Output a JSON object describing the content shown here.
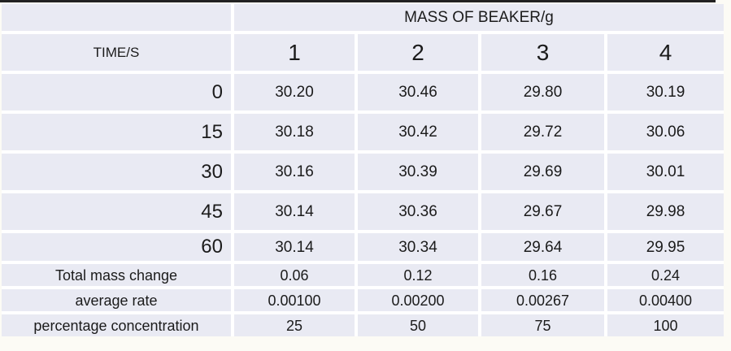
{
  "table": {
    "title": "MASS OF BEAKER/g",
    "time_label": "TIME/S",
    "beaker_numbers": [
      "1",
      "2",
      "3",
      "4"
    ],
    "readings": [
      {
        "time": "0",
        "values": [
          "30.20",
          "30.46",
          "29.80",
          "30.19"
        ]
      },
      {
        "time": "15",
        "values": [
          "30.18",
          "30.42",
          "29.72",
          "30.06"
        ]
      },
      {
        "time": "30",
        "values": [
          "30.16",
          "30.39",
          "29.69",
          "30.01"
        ]
      },
      {
        "time": "45",
        "values": [
          "30.14",
          "30.36",
          "29.67",
          "29.98"
        ]
      },
      {
        "time": "60",
        "values": [
          "30.14",
          "30.34",
          "29.64",
          "29.95"
        ]
      }
    ],
    "summary": [
      {
        "label": "Total mass change",
        "values": [
          "0.06",
          "0.12",
          "0.16",
          "0.24"
        ]
      },
      {
        "label": "average rate",
        "values": [
          "0.00100",
          "0.00200",
          "0.00267",
          "0.00400"
        ]
      },
      {
        "label": "percentage concentration",
        "values": [
          "25",
          "50",
          "75",
          "100"
        ]
      }
    ],
    "colors": {
      "cell_fill": "#e9eaf3",
      "grid_gap": "#ffffff",
      "text": "#1b1b1b",
      "top_border": "#222222",
      "page_background": "#fcfbf5"
    }
  }
}
